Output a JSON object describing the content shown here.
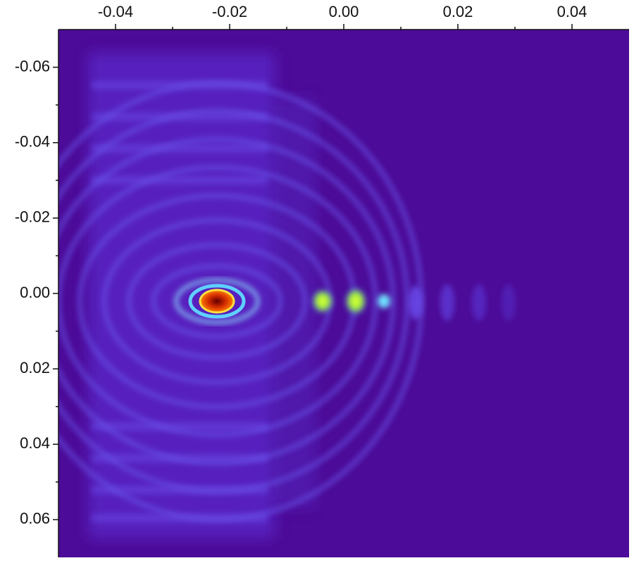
{
  "chart_data": {
    "type": "image",
    "xlim": [
      -0.05,
      0.05
    ],
    "xticks": [
      -0.04,
      -0.02,
      {
        "value": 0,
        "label": "0.00"
      },
      0.02,
      0.04
    ],
    "xminor_ticks": [
      -0.03,
      -0.01,
      0.01,
      0.03
    ],
    "ylim": [
      -0.07,
      0.07
    ],
    "yticks": [
      -0.06,
      -0.04,
      -0.02,
      {
        "value": 0,
        "label": "0.00"
      },
      0.02,
      0.04,
      0.06
    ],
    "yminor_ticks": [
      -0.05,
      -0.03,
      -0.01,
      0.01,
      0.03,
      0.05
    ],
    "y_inverted": true,
    "x_axis_position": "top"
  }
}
